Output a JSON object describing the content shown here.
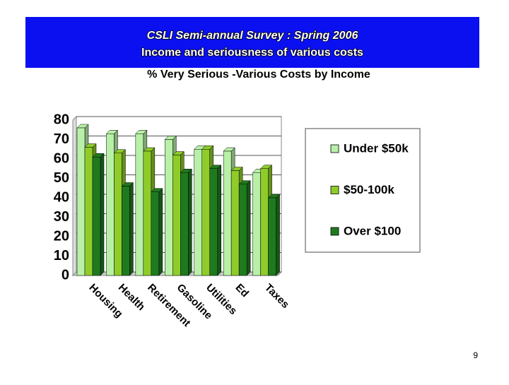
{
  "header": {
    "title": "CSLI Semi-annual Survey : Spring 2006",
    "subtitle": "Income and seriousness of various costs"
  },
  "chart_data": {
    "type": "bar",
    "title": "% Very Serious -Various Costs by Income",
    "categories": [
      "Housing",
      "Health",
      "Retirement",
      "Gasoline",
      "Utilities",
      "Ed",
      "Taxes"
    ],
    "series": [
      {
        "name": "Under $50k",
        "color": "#b8f0a8",
        "values": [
          76,
          73,
          73,
          70,
          65,
          64,
          53
        ]
      },
      {
        "name": "$50-100k",
        "color": "#8fcc2a",
        "values": [
          66,
          63,
          64,
          62,
          65,
          54,
          55
        ]
      },
      {
        "name": "Over $100",
        "color": "#1f7a1f",
        "values": [
          61,
          46,
          43,
          53,
          55,
          47,
          40
        ]
      }
    ],
    "ylim": [
      0,
      80
    ],
    "yticks": [
      0,
      10,
      20,
      30,
      40,
      50,
      60,
      70,
      80
    ],
    "grid": true,
    "legend_position": "right"
  },
  "page_number": "9"
}
